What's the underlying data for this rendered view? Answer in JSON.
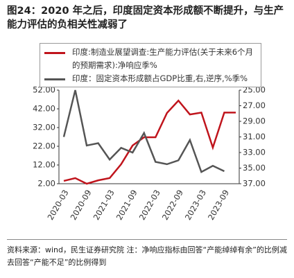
{
  "title": "图24：2020 年之后，印度固定资本形成额不断提升，与生产能力评估的负相关性减弱了",
  "chart_data": {
    "type": "line",
    "categories": [
      "2020-03",
      null,
      "2020-09",
      null,
      "2021-03",
      null,
      "2021-09",
      null,
      "2022-03",
      null,
      "2022-09",
      null,
      "2023-03",
      null,
      "2023-09",
      null
    ],
    "series": [
      {
        "name": "印度:制造业展望调查:生产能力评估(关于未来6个月的预期需求):净响应季%",
        "color": "#c0141c",
        "values": [
          3.5,
          5,
          2,
          3.8,
          5,
          12.4,
          22.4,
          26.8,
          26.8,
          39.8,
          46.4,
          39,
          40,
          21.3,
          40,
          40
        ]
      },
      {
        "name": "印度：固定资本形成额占GDP比重,右,逆序,%季%",
        "color": "#555555",
        "axis": "y2",
        "values": [
          31,
          25,
          32.1,
          31.8,
          33.9,
          32.4,
          33,
          30.5,
          34.2,
          34.5,
          34,
          31.4,
          35.5,
          34.7,
          35.4,
          null
        ]
      }
    ],
    "ylim": [
      2,
      52
    ],
    "yticks": [
      {
        "value": 2,
        "label": "2.00"
      },
      {
        "value": 12,
        "label": "12.00"
      },
      {
        "value": 22,
        "label": "22.00"
      },
      {
        "value": 32,
        "label": "32.00"
      },
      {
        "value": 42,
        "label": "42.00"
      },
      {
        "value": 52,
        "label": "52.00"
      }
    ],
    "y2lim": [
      25,
      37
    ],
    "y2_inverted": true,
    "y2ticks": [
      {
        "value": 25,
        "label": "25.00"
      },
      {
        "value": 27,
        "label": "27.00"
      },
      {
        "value": 29,
        "label": "29.00"
      },
      {
        "value": 31,
        "label": "31.00"
      },
      {
        "value": 33,
        "label": "33.00"
      },
      {
        "value": 35,
        "label": "35.00"
      },
      {
        "value": 37,
        "label": "37.00"
      }
    ]
  },
  "note": "资料来源：wind，民生证券研究院  注：净响应指标由回答“产能绰绰有余”的比例减去回答“产能不足”的比例得到"
}
